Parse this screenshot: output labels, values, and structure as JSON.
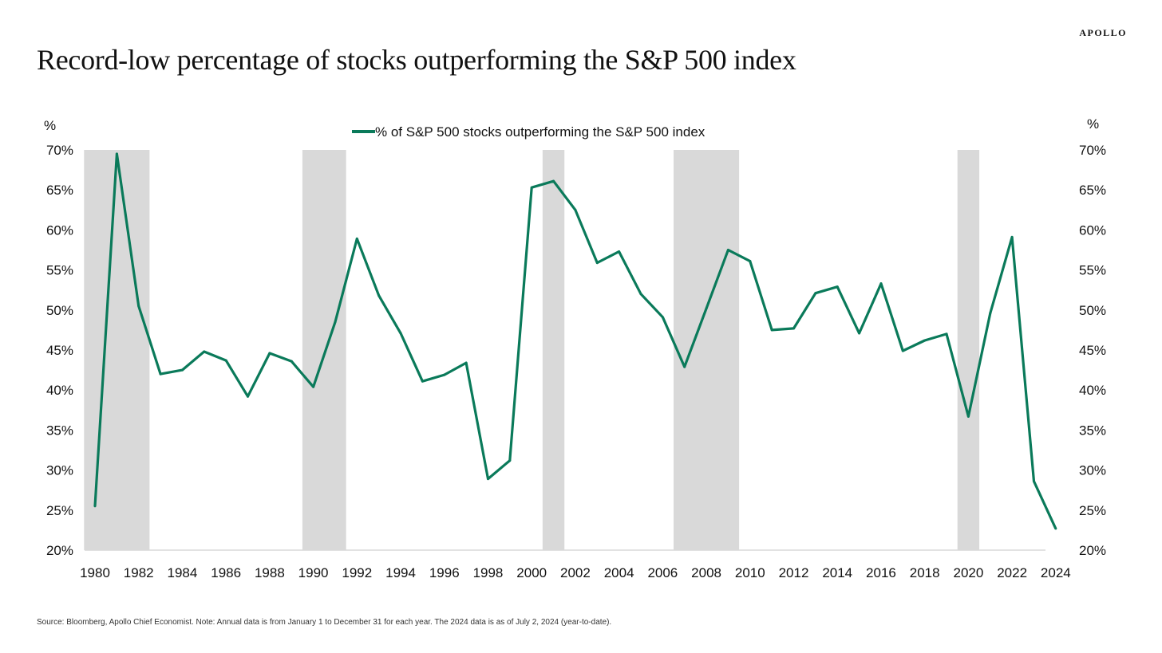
{
  "brand": "APOLLO",
  "title": "Record-low percentage of stocks outperforming the S&P 500 index",
  "source": "Source: Bloomberg, Apollo Chief Economist. Note: Annual data is from January 1 to December 31 for each year. The 2024 data is as of July 2, 2024 (year-to-date).",
  "chart_data": {
    "type": "line",
    "title": "Record-low percentage of stocks outperforming the S&P 500 index",
    "ylabel_left": "%",
    "ylabel_right": "%",
    "ylim": [
      20,
      70
    ],
    "yticks": [
      "20%",
      "25%",
      "30%",
      "35%",
      "40%",
      "45%",
      "50%",
      "55%",
      "60%",
      "65%",
      "70%"
    ],
    "xlim": [
      1979.5,
      2024.5
    ],
    "xticks": [
      "1980",
      "1982",
      "1984",
      "1986",
      "1988",
      "1990",
      "1992",
      "1994",
      "1996",
      "1998",
      "2000",
      "2002",
      "2004",
      "2006",
      "2008",
      "2010",
      "2012",
      "2014",
      "2016",
      "2018",
      "2020",
      "2022",
      "2024"
    ],
    "legend_position": "top-center",
    "grid": false,
    "line_color": "#0a7a5a",
    "shade_color": "#d9d9d9",
    "recession_shading": [
      [
        1979.5,
        1982.5
      ],
      [
        1989.5,
        1991.5
      ],
      [
        2000.5,
        2001.5
      ],
      [
        2006.5,
        2009.5
      ],
      [
        2019.5,
        2020.5
      ]
    ],
    "series": [
      {
        "name": "% of S&P 500 stocks outperforming the S&P 500 index",
        "x": [
          1980,
          1981,
          1982,
          1983,
          1984,
          1985,
          1986,
          1987,
          1988,
          1989,
          1990,
          1991,
          1992,
          1993,
          1994,
          1995,
          1996,
          1997,
          1998,
          1999,
          2000,
          2001,
          2002,
          2003,
          2004,
          2005,
          2006,
          2007,
          2008,
          2009,
          2010,
          2011,
          2012,
          2013,
          2014,
          2015,
          2016,
          2017,
          2018,
          2019,
          2020,
          2021,
          2022,
          2023,
          2024
        ],
        "values": [
          25.5,
          69.5,
          50.5,
          42.0,
          42.5,
          44.8,
          43.7,
          39.2,
          44.6,
          43.6,
          40.4,
          48.5,
          58.9,
          51.8,
          47.1,
          41.1,
          41.9,
          43.4,
          28.9,
          31.2,
          65.3,
          66.1,
          62.5,
          55.9,
          57.3,
          52.0,
          49.1,
          42.9,
          50.2,
          57.5,
          56.1,
          47.5,
          47.7,
          52.1,
          52.9,
          47.1,
          53.3,
          44.9,
          46.2,
          47.0,
          36.7,
          49.6,
          59.1,
          28.6,
          22.7
        ]
      }
    ]
  }
}
